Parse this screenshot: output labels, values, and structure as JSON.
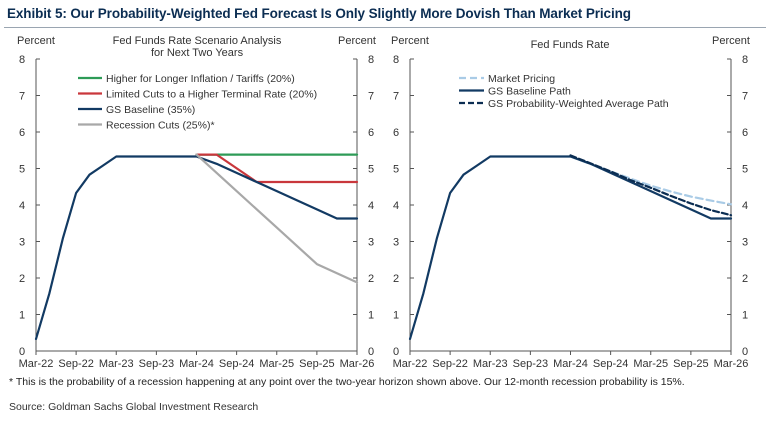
{
  "title": "Exhibit 5: Our Probability-Weighted Fed Forecast Is Only Slightly More Dovish Than Market Pricing",
  "footnote": "* This is the probability of a recession happening at any point over the two-year horizon shown above.  Our 12-month recession probability is 15%.",
  "source": "Source: Goldman Sachs Global Investment Research",
  "chart_data": [
    {
      "type": "line",
      "title_lines": [
        "Fed Funds Rate Scenario Analysis",
        "for Next Two Years"
      ],
      "ylabel_left": "Percent",
      "ylabel_right": "Percent",
      "ylim": [
        0,
        8
      ],
      "yticks": [
        0,
        1,
        2,
        3,
        4,
        5,
        6,
        7,
        8
      ],
      "x_tick_labels": [
        "Mar-22",
        "Sep-22",
        "Mar-23",
        "Sep-23",
        "Mar-24",
        "Sep-24",
        "Mar-25",
        "Sep-25",
        "Mar-26"
      ],
      "x_tick_months": [
        0,
        6,
        12,
        18,
        24,
        30,
        36,
        42,
        48
      ],
      "x_range": [
        0,
        48
      ],
      "grid": false,
      "legend_position": "top-left",
      "series": [
        {
          "name": "Higher for Longer Inflation / Tariffs (20%)",
          "color": "#2e9b57",
          "dash": "",
          "x": [
            24,
            48
          ],
          "y": [
            5.38,
            5.38
          ]
        },
        {
          "name": "Limited Cuts to a Higher Terminal Rate (20%)",
          "color": "#c9373c",
          "dash": "",
          "x": [
            24,
            27,
            33,
            48
          ],
          "y": [
            5.38,
            5.38,
            4.63,
            4.63
          ]
        },
        {
          "name": "GS Baseline (35%)",
          "color": "#123a63",
          "dash": "",
          "x": [
            0,
            2,
            4,
            6,
            8,
            10,
            12,
            14,
            16,
            18,
            20,
            22,
            24,
            27,
            30,
            33,
            36,
            39,
            42,
            45,
            48
          ],
          "y": [
            0.33,
            1.58,
            3.08,
            4.33,
            4.83,
            5.08,
            5.33,
            5.33,
            5.33,
            5.33,
            5.33,
            5.33,
            5.33,
            5.13,
            4.88,
            4.63,
            4.38,
            4.13,
            3.88,
            3.63,
            3.63
          ]
        },
        {
          "name": "Recession Cuts (25%)*",
          "color": "#a8a8a8",
          "dash": "",
          "x": [
            24,
            30,
            36,
            42,
            48
          ],
          "y": [
            5.38,
            4.38,
            3.38,
            2.38,
            1.88
          ]
        }
      ]
    },
    {
      "type": "line",
      "title_lines": [
        "Fed Funds Rate"
      ],
      "ylabel_left": "Percent",
      "ylabel_right": "Percent",
      "ylim": [
        0,
        8
      ],
      "yticks": [
        0,
        1,
        2,
        3,
        4,
        5,
        6,
        7,
        8
      ],
      "x_tick_labels": [
        "Mar-22",
        "Sep-22",
        "Mar-23",
        "Sep-23",
        "Mar-24",
        "Sep-24",
        "Mar-25",
        "Sep-25",
        "Mar-26"
      ],
      "x_tick_months": [
        0,
        6,
        12,
        18,
        24,
        30,
        36,
        42,
        48
      ],
      "x_range": [
        0,
        48
      ],
      "grid": false,
      "legend_position": "top-left",
      "series": [
        {
          "name": "Market Pricing",
          "color": "#a9cbe6",
          "dash": "7,4",
          "x": [
            24,
            27,
            30,
            33,
            36,
            39,
            42,
            45,
            48
          ],
          "y": [
            5.33,
            5.12,
            4.92,
            4.72,
            4.53,
            4.37,
            4.23,
            4.12,
            4.02
          ]
        },
        {
          "name": "GS Baseline Path",
          "color": "#123a63",
          "dash": "",
          "x": [
            0,
            2,
            4,
            6,
            8,
            10,
            12,
            14,
            16,
            18,
            20,
            22,
            24,
            27,
            30,
            33,
            36,
            39,
            42,
            45,
            48
          ],
          "y": [
            0.33,
            1.58,
            3.08,
            4.33,
            4.83,
            5.08,
            5.33,
            5.33,
            5.33,
            5.33,
            5.33,
            5.33,
            5.33,
            5.13,
            4.88,
            4.63,
            4.38,
            4.13,
            3.88,
            3.63,
            3.63
          ]
        },
        {
          "name": "GS Probability-Weighted Average Path",
          "color": "#0b2d52",
          "dash": "6,3",
          "x": [
            24,
            27,
            30,
            33,
            36,
            39,
            42,
            45,
            48
          ],
          "y": [
            5.36,
            5.14,
            4.92,
            4.68,
            4.47,
            4.25,
            4.04,
            3.86,
            3.72
          ]
        }
      ]
    }
  ]
}
